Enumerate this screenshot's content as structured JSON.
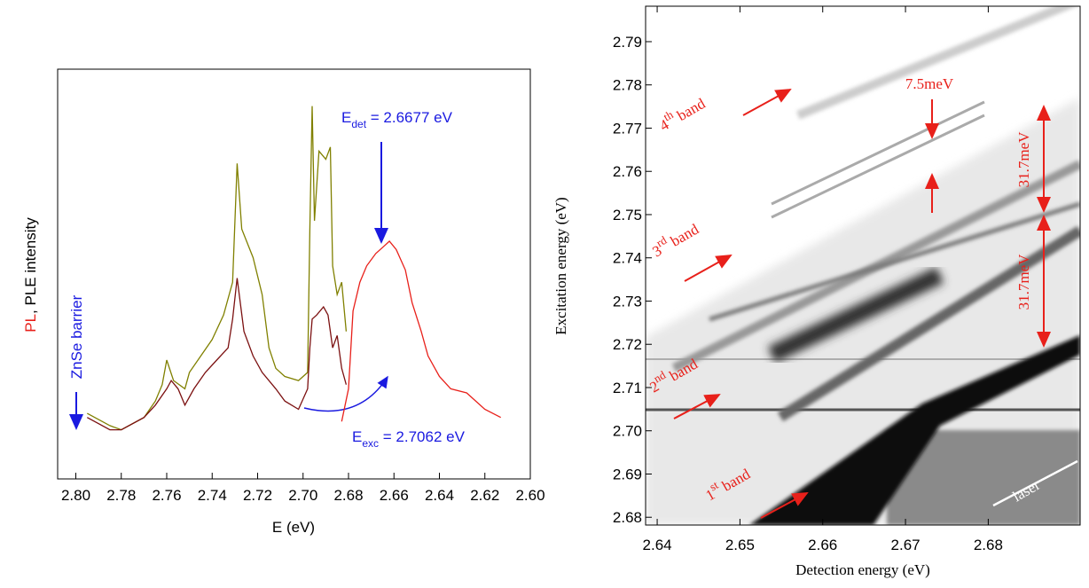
{
  "chart_data": [
    {
      "type": "line",
      "y_label": {
        "red": "PL",
        "rest": ", PLE intensity"
      },
      "x_label": "E (eV)",
      "xlim": [
        2.808,
        2.6
      ],
      "ylim": [
        0,
        1
      ],
      "xticks": [
        {
          "value": 2.8,
          "label": "2.80"
        },
        2.78,
        2.76,
        2.74,
        2.72,
        {
          "value": 2.7,
          "label": "2.70"
        },
        2.68,
        2.66,
        2.64,
        2.62,
        {
          "value": 2.6,
          "label": "2.60"
        }
      ],
      "annotations": {
        "barrier": "ZnSe barrier",
        "det": {
          "text": "E",
          "sub": "det",
          "rest": " = 2.6677 eV"
        },
        "exc": {
          "text": "E",
          "sub": "exc",
          "rest": " = 2.7062 eV"
        }
      },
      "series": [
        {
          "color": "#808000",
          "x": [
            2.795,
            2.785,
            2.78,
            2.77,
            2.765,
            2.762,
            2.76,
            2.757,
            2.752,
            2.75,
            2.745,
            2.74,
            2.735,
            2.731,
            2.729,
            2.727,
            2.722,
            2.718,
            2.715,
            2.712,
            2.708,
            2.702,
            2.698,
            2.697,
            2.696,
            2.695,
            2.693,
            2.69,
            2.688,
            2.687,
            2.685,
            2.683,
            2.681
          ],
          "values": [
            0.16,
            0.13,
            0.12,
            0.15,
            0.19,
            0.23,
            0.29,
            0.24,
            0.22,
            0.26,
            0.3,
            0.34,
            0.4,
            0.48,
            0.77,
            0.61,
            0.54,
            0.45,
            0.32,
            0.27,
            0.25,
            0.24,
            0.26,
            0.61,
            0.91,
            0.63,
            0.8,
            0.78,
            0.81,
            0.52,
            0.45,
            0.48,
            0.36
          ]
        },
        {
          "color": "#7b1010",
          "x": [
            2.795,
            2.785,
            2.78,
            2.77,
            2.765,
            2.76,
            2.758,
            2.755,
            2.752,
            2.748,
            2.743,
            2.738,
            2.733,
            2.731,
            2.729,
            2.726,
            2.722,
            2.718,
            2.712,
            2.708,
            2.702,
            2.698,
            2.697,
            2.696,
            2.694,
            2.691,
            2.689,
            2.687,
            2.685,
            2.683,
            2.681
          ],
          "values": [
            0.15,
            0.12,
            0.12,
            0.15,
            0.18,
            0.22,
            0.24,
            0.22,
            0.18,
            0.22,
            0.26,
            0.29,
            0.32,
            0.39,
            0.49,
            0.36,
            0.3,
            0.26,
            0.22,
            0.19,
            0.17,
            0.22,
            0.32,
            0.39,
            0.4,
            0.42,
            0.4,
            0.32,
            0.35,
            0.27,
            0.23
          ]
        },
        {
          "color": "#e8201a",
          "x": [
            2.683,
            2.68,
            2.678,
            2.675,
            2.672,
            2.668,
            2.664,
            2.662,
            2.659,
            2.655,
            2.652,
            2.648,
            2.645,
            2.64,
            2.635,
            2.628,
            2.62,
            2.613
          ],
          "values": [
            0.14,
            0.22,
            0.41,
            0.48,
            0.52,
            0.55,
            0.57,
            0.58,
            0.56,
            0.51,
            0.43,
            0.36,
            0.3,
            0.25,
            0.22,
            0.21,
            0.17,
            0.15
          ]
        }
      ]
    },
    {
      "type": "heatmap-image",
      "x_label": "Detection energy (eV)",
      "y_label": "Excitation energy (eV)",
      "xlim": [
        2.6386,
        2.6911
      ],
      "ylim": [
        2.6782,
        2.7982
      ],
      "xticks": [
        2.64,
        2.65,
        2.66,
        2.67,
        2.68
      ],
      "yticks": [
        2.68,
        2.69,
        {
          "value": 2.7,
          "label": "2.70"
        },
        2.71,
        2.72,
        2.73,
        2.74,
        2.75,
        2.76,
        2.77,
        2.78,
        2.79
      ],
      "annotations": {
        "band4": {
          "text": "4",
          "sup": "th",
          "rest": " band"
        },
        "band3": {
          "text": "3",
          "sup": "rd",
          "rest": " band"
        },
        "band2": {
          "text": "2",
          "sup": "nd",
          "rest": " band"
        },
        "band1": {
          "text": "1",
          "sup": "st",
          "rest": " band"
        },
        "split": "7.5meV",
        "gap_upper": "31.7meV",
        "gap_lower": "31.7meV",
        "laser": "laser"
      }
    }
  ]
}
